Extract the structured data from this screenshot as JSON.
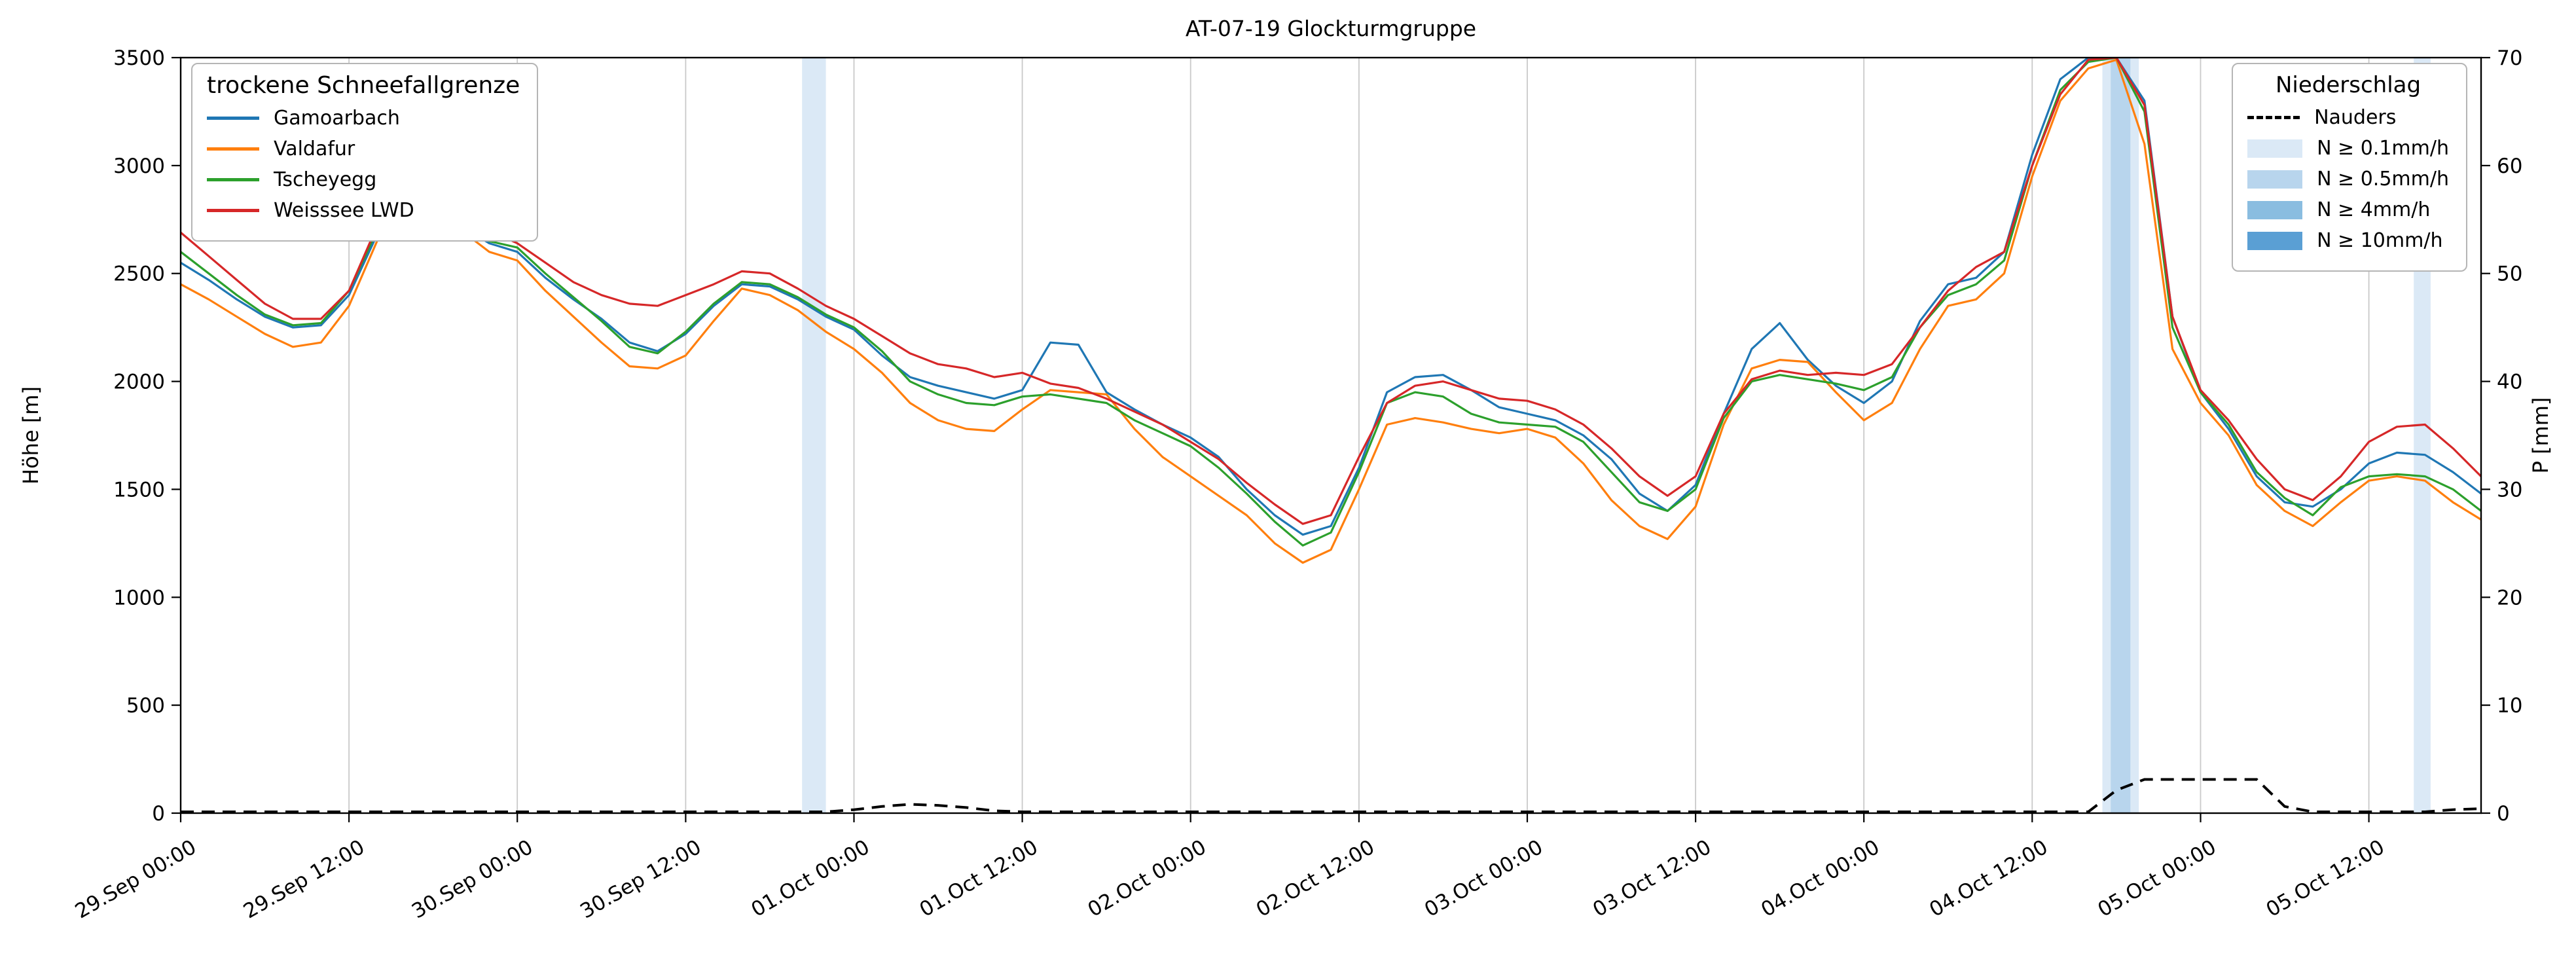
{
  "title": "AT-07-19 Glockturmgruppe",
  "axes": {
    "y_left_label": "Höhe [m]",
    "y_right_label": "P [mm]",
    "y_left_ticks": [
      "0",
      "500",
      "1000",
      "1500",
      "2000",
      "2500",
      "3000",
      "3500"
    ],
    "y_right_ticks": [
      "0",
      "10",
      "20",
      "30",
      "40",
      "50",
      "60",
      "70"
    ]
  },
  "legend_left": {
    "title": "trockene Schneefallgrenze",
    "entries": [
      {
        "label": "Gamoarbach",
        "color": "#1f77b4"
      },
      {
        "label": "Valdafur",
        "color": "#ff7f0e"
      },
      {
        "label": "Tscheyegg",
        "color": "#2ca02c"
      },
      {
        "label": "Weisssee LWD",
        "color": "#d62728"
      }
    ]
  },
  "legend_right": {
    "title": "Niederschlag",
    "entries": [
      {
        "label": "Nauders",
        "type": "dashed",
        "color": "#000000"
      },
      {
        "label": "N ≥ 0.1mm/h",
        "type": "patch",
        "color": "#dbe9f6"
      },
      {
        "label": "N ≥ 0.5mm/h",
        "type": "patch",
        "color": "#b8d5ed"
      },
      {
        "label": "N ≥ 4mm/h",
        "type": "patch",
        "color": "#8abde0"
      },
      {
        "label": "N ≥ 10mm/h",
        "type": "patch",
        "color": "#5a9fd4"
      }
    ]
  },
  "chart_data": {
    "type": "line",
    "title": "AT-07-19 Glockturmgruppe",
    "x_unit": "hours since 29.Sep 00:00",
    "x_hours": [
      0,
      2,
      4,
      6,
      8,
      10,
      12,
      14,
      16,
      18,
      20,
      22,
      24,
      26,
      28,
      30,
      32,
      34,
      36,
      38,
      40,
      42,
      44,
      46,
      48,
      50,
      52,
      54,
      56,
      58,
      60,
      62,
      64,
      66,
      68,
      70,
      72,
      74,
      76,
      78,
      80,
      82,
      84,
      86,
      88,
      90,
      92,
      94,
      96,
      98,
      100,
      102,
      104,
      106,
      108,
      110,
      112,
      114,
      116,
      118,
      120,
      122,
      124,
      126,
      128,
      130,
      132,
      134,
      136,
      138,
      140,
      142,
      144,
      146,
      148,
      150,
      152,
      154,
      156,
      158,
      160,
      162,
      164
    ],
    "x_tick_hours": [
      0,
      12,
      24,
      36,
      48,
      60,
      72,
      84,
      96,
      108,
      120,
      132,
      144,
      156
    ],
    "x_tick_labels": [
      "29.Sep 00:00",
      "29.Sep 12:00",
      "30.Sep 00:00",
      "30.Sep 12:00",
      "01.Oct 00:00",
      "01.Oct 12:00",
      "02.Oct 00:00",
      "02.Oct 12:00",
      "03.Oct 00:00",
      "03.Oct 12:00",
      "04.Oct 00:00",
      "04.Oct 12:00",
      "05.Oct 00:00",
      "05.Oct 12:00"
    ],
    "y_left": {
      "label": "Höhe [m]",
      "min": 0,
      "max": 3500,
      "tick_step": 500
    },
    "y_right": {
      "label": "P [mm]",
      "min": 0,
      "max": 70,
      "tick_step": 10
    },
    "grid": "vertical",
    "series": [
      {
        "name": "Gamoarbach",
        "color": "#1f77b4",
        "values": [
          2550,
          2470,
          2380,
          2300,
          2250,
          2260,
          2400,
          2680,
          2950,
          2850,
          2720,
          2640,
          2600,
          2480,
          2380,
          2290,
          2180,
          2140,
          2220,
          2350,
          2450,
          2440,
          2380,
          2300,
          2240,
          2120,
          2020,
          1980,
          1950,
          1920,
          1960,
          2180,
          2170,
          1950,
          1870,
          1800,
          1740,
          1650,
          1500,
          1380,
          1290,
          1330,
          1600,
          1950,
          2020,
          2030,
          1960,
          1880,
          1850,
          1820,
          1750,
          1640,
          1480,
          1400,
          1520,
          1850,
          2150,
          2270,
          2100,
          1980,
          1900,
          2000,
          2280,
          2450,
          2480,
          2600,
          3050,
          3400,
          3500,
          3500,
          3300,
          2300,
          1950,
          1780,
          1560,
          1440,
          1420,
          1500,
          1620,
          1670,
          1660,
          1580,
          1480
        ]
      },
      {
        "name": "Valdafur",
        "color": "#ff7f0e",
        "values": [
          2450,
          2380,
          2300,
          2220,
          2160,
          2180,
          2350,
          2650,
          2960,
          2870,
          2700,
          2600,
          2560,
          2420,
          2300,
          2180,
          2070,
          2060,
          2120,
          2280,
          2430,
          2400,
          2330,
          2230,
          2150,
          2040,
          1900,
          1820,
          1780,
          1770,
          1870,
          1960,
          1950,
          1940,
          1780,
          1650,
          1560,
          1470,
          1380,
          1250,
          1160,
          1220,
          1500,
          1800,
          1830,
          1810,
          1780,
          1760,
          1780,
          1740,
          1620,
          1450,
          1330,
          1270,
          1420,
          1800,
          2060,
          2100,
          2090,
          1950,
          1820,
          1900,
          2150,
          2350,
          2380,
          2500,
          2950,
          3300,
          3450,
          3490,
          3100,
          2150,
          1900,
          1750,
          1520,
          1400,
          1330,
          1440,
          1540,
          1560,
          1540,
          1440,
          1360
        ]
      },
      {
        "name": "Tscheyegg",
        "color": "#2ca02c",
        "values": [
          2600,
          2500,
          2400,
          2310,
          2260,
          2270,
          2420,
          2700,
          2980,
          2880,
          2740,
          2650,
          2620,
          2500,
          2390,
          2280,
          2160,
          2130,
          2230,
          2360,
          2460,
          2450,
          2390,
          2310,
          2250,
          2140,
          2000,
          1940,
          1900,
          1890,
          1930,
          1940,
          1920,
          1900,
          1820,
          1760,
          1700,
          1600,
          1480,
          1350,
          1240,
          1300,
          1580,
          1900,
          1950,
          1930,
          1850,
          1810,
          1800,
          1790,
          1720,
          1580,
          1440,
          1400,
          1500,
          1830,
          2000,
          2030,
          2010,
          1990,
          1960,
          2020,
          2250,
          2400,
          2450,
          2560,
          3000,
          3350,
          3480,
          3500,
          3250,
          2250,
          1950,
          1800,
          1580,
          1460,
          1380,
          1510,
          1560,
          1570,
          1560,
          1500,
          1400
        ]
      },
      {
        "name": "Weisssee LWD",
        "color": "#d62728",
        "values": [
          2690,
          2580,
          2470,
          2360,
          2290,
          2290,
          2420,
          2720,
          3010,
          2920,
          2790,
          2700,
          2640,
          2550,
          2460,
          2400,
          2360,
          2350,
          2400,
          2450,
          2510,
          2500,
          2430,
          2350,
          2290,
          2210,
          2130,
          2080,
          2060,
          2020,
          2040,
          1990,
          1970,
          1920,
          1860,
          1800,
          1720,
          1640,
          1530,
          1430,
          1340,
          1380,
          1650,
          1900,
          1980,
          2000,
          1960,
          1920,
          1910,
          1870,
          1800,
          1690,
          1560,
          1470,
          1560,
          1850,
          2010,
          2050,
          2030,
          2040,
          2030,
          2080,
          2250,
          2420,
          2530,
          2600,
          3000,
          3330,
          3490,
          3500,
          3280,
          2300,
          1960,
          1820,
          1640,
          1500,
          1450,
          1560,
          1720,
          1790,
          1800,
          1690,
          1560
        ]
      }
    ],
    "precipitation_series": {
      "name": "Nauders",
      "axis": "right",
      "style": "dashed",
      "color": "#000000",
      "values": [
        0,
        0,
        0,
        0,
        0,
        0,
        0,
        0,
        0,
        0,
        0,
        0,
        0,
        0,
        0,
        0,
        0,
        0,
        0,
        0,
        0,
        0,
        0,
        0,
        0.2,
        0.5,
        0.7,
        0.6,
        0.4,
        0.1,
        0,
        0,
        0,
        0,
        0,
        0,
        0,
        0,
        0,
        0,
        0,
        0,
        0,
        0,
        0,
        0,
        0,
        0,
        0,
        0,
        0,
        0,
        0,
        0,
        0,
        0,
        0,
        0,
        0,
        0,
        0,
        0,
        0,
        0,
        0,
        0,
        0,
        0,
        0,
        2,
        3,
        3,
        3,
        3,
        3,
        0.5,
        0,
        0,
        0,
        0,
        0,
        0.2,
        0.3
      ]
    },
    "precip_bands": [
      {
        "start_h": 44.3,
        "end_h": 46.0,
        "level": "0.1"
      },
      {
        "start_h": 137.0,
        "end_h": 139.6,
        "level": "0.1"
      },
      {
        "start_h": 137.6,
        "end_h": 139.0,
        "level": "0.5"
      },
      {
        "start_h": 159.2,
        "end_h": 160.4,
        "level": "0.1"
      }
    ],
    "band_colors": {
      "0.1": "#dbe9f6",
      "0.5": "#b8d5ed",
      "4": "#8abde0",
      "10": "#5a9fd4"
    }
  }
}
